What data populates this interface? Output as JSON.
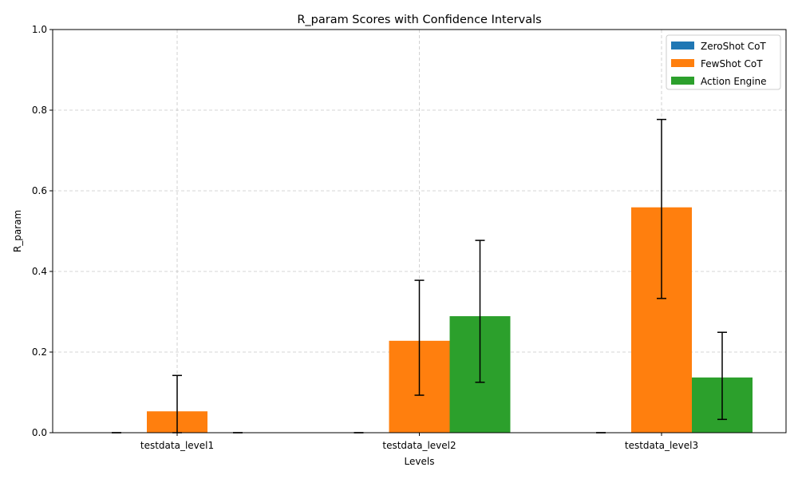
{
  "chart_data": {
    "type": "bar",
    "title": "R_param Scores with Confidence Intervals",
    "xlabel": "Levels",
    "ylabel": "R_param",
    "ylim": [
      0,
      1
    ],
    "yticks": [
      "0.0",
      "0.2",
      "0.4",
      "0.6",
      "0.8",
      "1.0"
    ],
    "categories": [
      "testdata_level1",
      "testdata_level2",
      "testdata_level3"
    ],
    "grid": true,
    "legend_position": "top-right",
    "series": [
      {
        "name": "ZeroShot CoT",
        "color": "#1f77b4",
        "values": [
          0.0,
          0.0,
          0.0
        ],
        "ci_low": [
          0.0,
          0.0,
          0.0
        ],
        "ci_high": [
          0.0,
          0.0,
          0.0
        ]
      },
      {
        "name": "FewShot CoT",
        "color": "#ff7f0e",
        "values": [
          0.053,
          0.228,
          0.559
        ],
        "ci_low": [
          0.0,
          0.093,
          0.333
        ],
        "ci_high": [
          0.142,
          0.378,
          0.777
        ]
      },
      {
        "name": "Action Engine",
        "color": "#2ca02c",
        "values": [
          0.0,
          0.289,
          0.137
        ],
        "ci_low": [
          0.0,
          0.125,
          0.033
        ],
        "ci_high": [
          0.0,
          0.477,
          0.249
        ]
      }
    ]
  }
}
